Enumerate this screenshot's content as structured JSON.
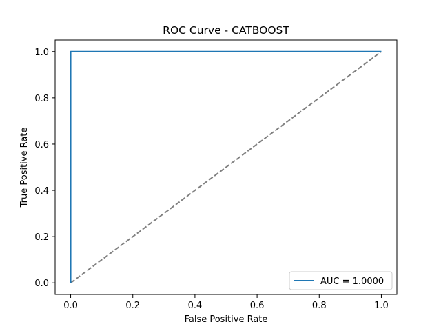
{
  "chart_data": {
    "type": "line",
    "title": "ROC Curve - CATBOOST",
    "xlabel": "False Positive Rate",
    "ylabel": "True Positive Rate",
    "xlim": [
      -0.05,
      1.05
    ],
    "ylim": [
      -0.05,
      1.05
    ],
    "xticks": [
      0.0,
      0.2,
      0.4,
      0.6,
      0.8,
      1.0
    ],
    "xtick_labels": [
      "0.0",
      "0.2",
      "0.4",
      "0.6",
      "0.8",
      "1.0"
    ],
    "yticks": [
      0.0,
      0.2,
      0.4,
      0.6,
      0.8,
      1.0
    ],
    "ytick_labels": [
      "0.0",
      "0.2",
      "0.4",
      "0.6",
      "0.8",
      "1.0"
    ],
    "grid": false,
    "legend_position": "lower right",
    "series": [
      {
        "name": "AUC = 1.0000",
        "color": "#1f77b4",
        "line_style": "solid",
        "x": [
          0.0,
          0.0,
          0.0,
          1.0
        ],
        "y": [
          0.0,
          0.995,
          1.0,
          1.0
        ]
      },
      {
        "color": "#808080",
        "line_style": "dashed",
        "x": [
          0.0,
          1.0
        ],
        "y": [
          0.0,
          1.0
        ]
      }
    ]
  }
}
